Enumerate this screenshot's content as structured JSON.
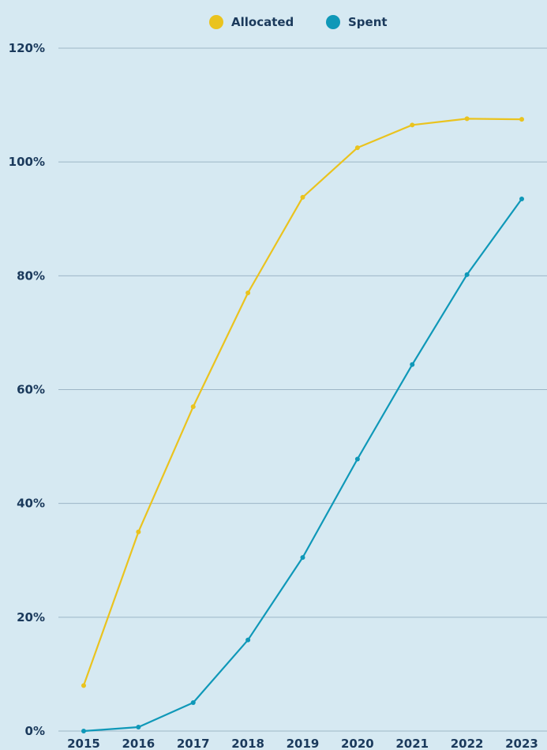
{
  "colors": {
    "background": "#d6e9f2",
    "text": "#1b3a5c",
    "grid": "#9db6c6"
  },
  "chart_data": {
    "type": "line",
    "title": "",
    "xlabel": "",
    "ylabel": "",
    "x": [
      "2015",
      "2016",
      "2017",
      "2018",
      "2019",
      "2020",
      "2021",
      "2022",
      "2023"
    ],
    "ylim": [
      0,
      120
    ],
    "y_ticks": [
      0,
      20,
      40,
      60,
      80,
      100,
      120
    ],
    "y_tick_labels": [
      "0%",
      "20%",
      "40%",
      "60%",
      "80%",
      "100%",
      "120%"
    ],
    "grid": true,
    "legend_position": "top-center",
    "series": [
      {
        "name": "Allocated",
        "color": "#eac31e",
        "values": [
          8,
          35,
          57,
          77,
          93.8,
          102.5,
          106.5,
          107.6,
          107.5
        ]
      },
      {
        "name": "Spent",
        "color": "#0f98b8",
        "values": [
          0,
          0.7,
          5,
          16,
          30.5,
          47.8,
          64.4,
          80.2,
          93.5
        ]
      }
    ]
  }
}
